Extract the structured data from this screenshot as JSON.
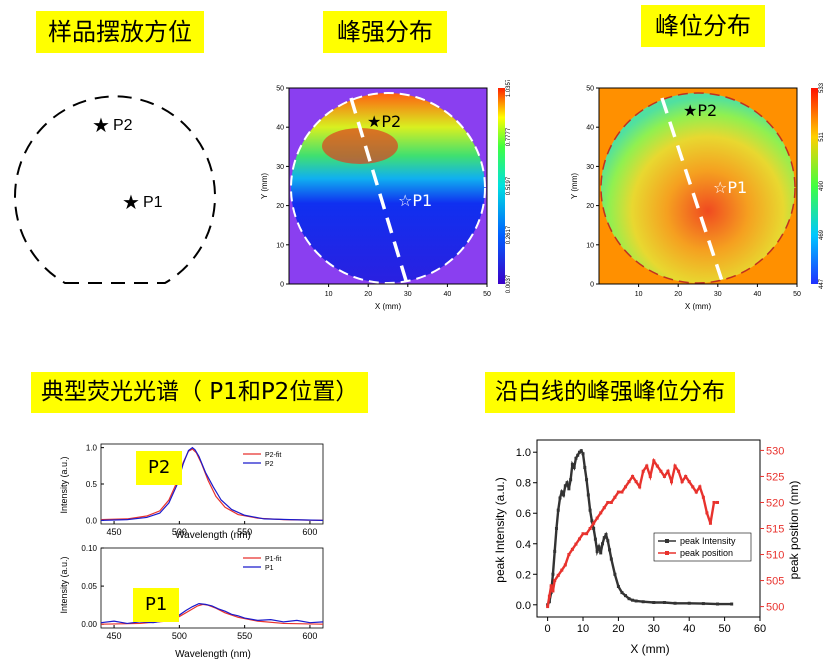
{
  "headers": {
    "sample": "样品摆放方位",
    "intensity": "峰强分布",
    "position": "峰位分布",
    "spectra": "典型荧光光谱（ P1和P2位置）",
    "line": "沿白线的峰强峰位分布"
  },
  "points": {
    "p1": "P1",
    "p2": "P2"
  },
  "colors": {
    "accent": "#ffff00",
    "red": "#e8322d",
    "blue": "#1a1acc",
    "dark": "#333333"
  },
  "chart_data": [
    {
      "id": "intensity_map",
      "type": "heatmap",
      "xlabel": "X (mm)",
      "ylabel": "Y (mm)",
      "xlim": [
        0,
        50
      ],
      "ylim": [
        0,
        50
      ],
      "xticks": [
        "10",
        "20",
        "30",
        "40",
        "50"
      ],
      "yticks": [
        "0",
        "10",
        "20",
        "30",
        "40",
        "50"
      ],
      "colorbar_ticks": [
        "0.0037",
        "0.2617",
        "0.5197",
        "0.7777",
        "1.0357"
      ],
      "markers": [
        {
          "name": "P2",
          "x": 22,
          "y": 41
        },
        {
          "name": "P1",
          "x": 29,
          "y": 23
        }
      ]
    },
    {
      "id": "position_map",
      "type": "heatmap",
      "xlabel": "X (mm)",
      "ylabel": "Y (mm)",
      "xlim": [
        0,
        50
      ],
      "ylim": [
        0,
        50
      ],
      "xticks": [
        "10",
        "20",
        "30",
        "40",
        "50"
      ],
      "yticks": [
        "0",
        "10",
        "20",
        "30",
        "40",
        "50"
      ],
      "colorbar_ticks": [
        "447",
        "469",
        "490",
        "511",
        "533"
      ],
      "markers": [
        {
          "name": "P2",
          "x": 18,
          "y": 44
        },
        {
          "name": "P1",
          "x": 30,
          "y": 25
        }
      ]
    },
    {
      "id": "spectrum_p2",
      "type": "line",
      "xlabel": "Wavelength (nm)",
      "ylabel": "Intensity (a.u.)",
      "xlim": [
        440,
        610
      ],
      "ylim": [
        -0.05,
        1.05
      ],
      "xticks": [
        "450",
        "500",
        "550",
        "600"
      ],
      "yticks": [
        "0.0",
        "0.5",
        "1.0"
      ],
      "series": [
        {
          "name": "P2-fit",
          "color": "#e8322d",
          "x": [
            440,
            460,
            475,
            485,
            492,
            498,
            503,
            507,
            510,
            513,
            517,
            522,
            528,
            535,
            545,
            560,
            580,
            610
          ],
          "y": [
            0.01,
            0.02,
            0.06,
            0.13,
            0.28,
            0.52,
            0.8,
            0.95,
            0.98,
            0.93,
            0.78,
            0.55,
            0.33,
            0.18,
            0.08,
            0.03,
            0.01,
            0.0
          ]
        },
        {
          "name": "P2",
          "color": "#1a1acc",
          "x": [
            440,
            460,
            475,
            485,
            492,
            498,
            503,
            507,
            510,
            512,
            515,
            520,
            526,
            532,
            540,
            550,
            565,
            585,
            610
          ],
          "y": [
            0.0,
            0.01,
            0.04,
            0.1,
            0.24,
            0.48,
            0.78,
            0.96,
            1.0,
            0.97,
            0.88,
            0.66,
            0.46,
            0.28,
            0.15,
            0.07,
            0.02,
            0.01,
            0.0
          ]
        }
      ]
    },
    {
      "id": "spectrum_p1",
      "type": "line",
      "xlabel": "Wavelength (nm)",
      "ylabel": "Intensity (a.u.)",
      "xlim": [
        440,
        610
      ],
      "ylim": [
        -0.005,
        0.1
      ],
      "xticks": [
        "450",
        "500",
        "550",
        "600"
      ],
      "yticks": [
        "0.00",
        "0.05",
        "0.10"
      ],
      "series": [
        {
          "name": "P1-fit",
          "color": "#e8322d",
          "x": [
            440,
            470,
            490,
            500,
            508,
            514,
            518,
            522,
            528,
            535,
            545,
            560,
            580,
            610
          ],
          "y": [
            0.0,
            0.001,
            0.004,
            0.01,
            0.018,
            0.024,
            0.026,
            0.025,
            0.021,
            0.015,
            0.009,
            0.004,
            0.001,
            0.0
          ]
        },
        {
          "name": "P1",
          "color": "#1a1acc",
          "x": [
            440,
            450,
            460,
            470,
            480,
            490,
            495,
            500,
            505,
            510,
            515,
            520,
            525,
            530,
            535,
            540,
            545,
            550,
            560,
            570,
            580,
            590,
            600,
            610
          ],
          "y": [
            0.002,
            0.004,
            0.001,
            0.003,
            0.002,
            0.005,
            0.008,
            0.012,
            0.018,
            0.023,
            0.027,
            0.026,
            0.024,
            0.02,
            0.017,
            0.013,
            0.011,
            0.008,
            0.005,
            0.006,
            0.003,
            0.005,
            0.002,
            0.003
          ]
        }
      ]
    },
    {
      "id": "line_profile",
      "type": "line",
      "xlabel": "X (mm)",
      "ylabel": "peak Intensity (a.u.)",
      "y2label": "peak position (nm)",
      "xlim": [
        -3,
        60
      ],
      "ylim": [
        -0.08,
        1.08
      ],
      "y2lim": [
        498,
        532
      ],
      "xticks": [
        "0",
        "10",
        "20",
        "30",
        "40",
        "50",
        "60"
      ],
      "yticks": [
        "0.0",
        "0.2",
        "0.4",
        "0.6",
        "0.8",
        "1.0"
      ],
      "y2ticks": [
        "500",
        "505",
        "510",
        "515",
        "520",
        "525",
        "530"
      ],
      "legend_position": "lower-right",
      "series": [
        {
          "name": "peak Intensity",
          "color": "#333333",
          "axis": "left",
          "x": [
            0,
            0.5,
            1,
            1.5,
            2,
            2.5,
            3,
            3.5,
            4,
            4.5,
            5,
            5.5,
            6,
            6.5,
            7,
            7.5,
            8,
            8.5,
            9,
            9.5,
            10,
            10.5,
            11,
            11.5,
            12,
            12.5,
            13,
            13.5,
            14,
            14.5,
            15,
            15.5,
            16,
            16.5,
            17,
            17.5,
            18,
            19,
            20,
            21,
            22,
            23,
            24,
            25,
            27,
            30,
            33,
            36,
            40,
            44,
            48,
            52
          ],
          "y": [
            0.0,
            0.02,
            0.08,
            0.2,
            0.35,
            0.5,
            0.62,
            0.7,
            0.74,
            0.72,
            0.78,
            0.8,
            0.76,
            0.82,
            0.92,
            0.9,
            0.96,
            0.98,
            1.0,
            1.01,
            0.99,
            0.9,
            0.82,
            0.72,
            0.62,
            0.55,
            0.5,
            0.43,
            0.35,
            0.38,
            0.34,
            0.4,
            0.44,
            0.46,
            0.42,
            0.36,
            0.3,
            0.2,
            0.12,
            0.08,
            0.06,
            0.04,
            0.03,
            0.025,
            0.02,
            0.015,
            0.015,
            0.01,
            0.01,
            0.008,
            0.005,
            0.005
          ]
        },
        {
          "name": "peak position",
          "color": "#e8322d",
          "axis": "right",
          "x": [
            0,
            0.5,
            1,
            1.5,
            2,
            3,
            4,
            5,
            6,
            7,
            8,
            9,
            10,
            11,
            12,
            13,
            14,
            15,
            16,
            17,
            18,
            19,
            20,
            21,
            22,
            23,
            24,
            25,
            26,
            27,
            28,
            29,
            30,
            31,
            32,
            33,
            34,
            35,
            36,
            37,
            38,
            39,
            40,
            41,
            42,
            43,
            44,
            45,
            46,
            47,
            48
          ],
          "y": [
            500,
            502,
            504,
            503,
            505,
            506,
            507,
            508,
            510,
            511,
            512,
            513,
            514,
            514,
            515,
            516,
            517,
            518,
            519,
            520,
            520,
            521,
            522,
            522,
            523,
            524,
            525,
            524,
            523,
            526,
            527,
            525,
            528,
            527,
            526,
            525,
            526,
            524,
            527,
            526,
            524,
            525,
            524,
            523,
            522,
            523,
            521,
            518,
            516,
            520,
            520
          ]
        }
      ]
    }
  ]
}
